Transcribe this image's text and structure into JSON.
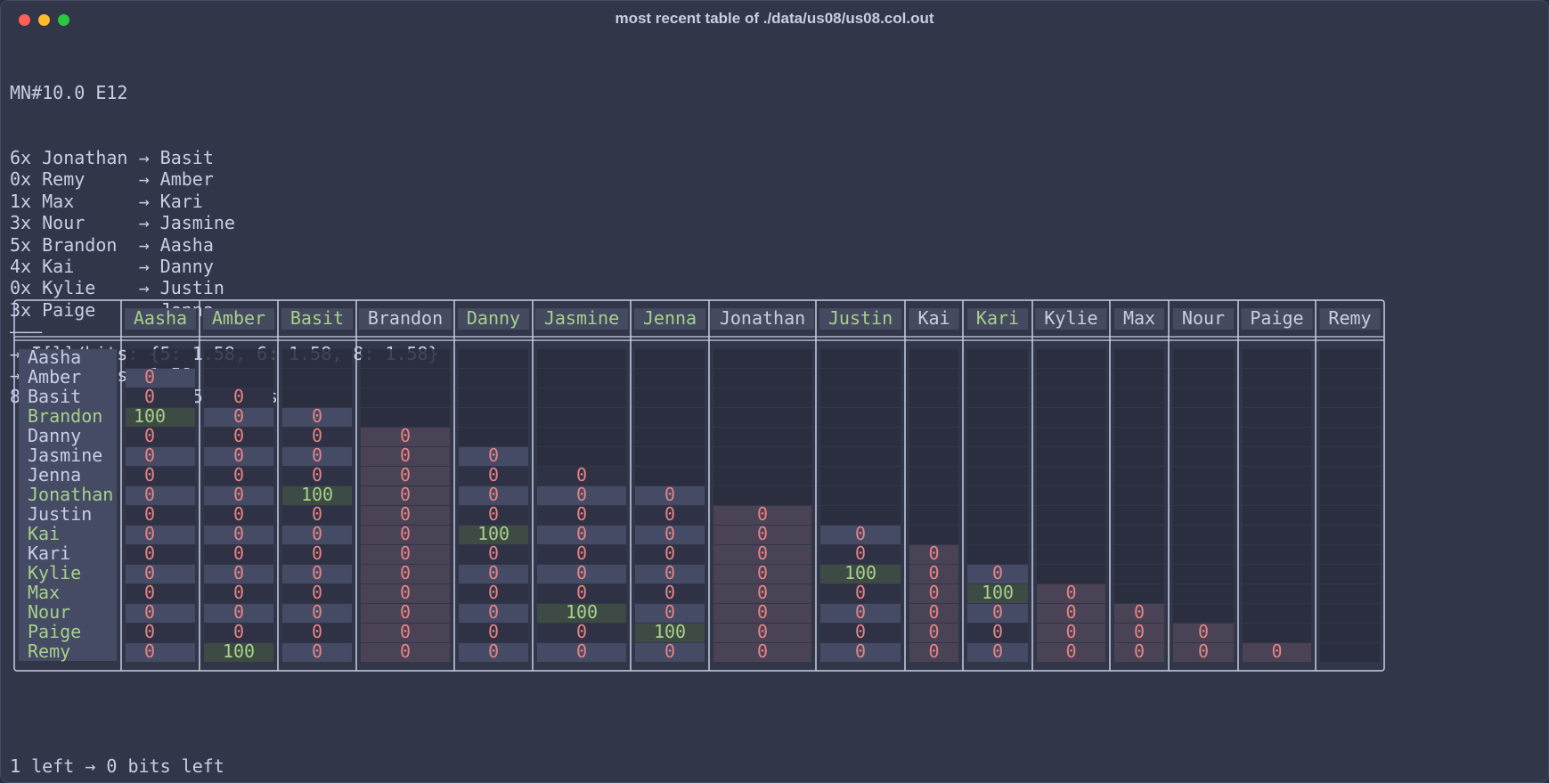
{
  "window": {
    "title": "most recent table of ./data/us08/us08.col.out"
  },
  "header_line": "MN#10.0 E12",
  "pairings": [
    {
      "count": "6x",
      "from": "Jonathan",
      "to": "Basit"
    },
    {
      "count": "0x",
      "from": "Remy",
      "to": "Amber"
    },
    {
      "count": "1x",
      "from": "Max",
      "to": "Kari"
    },
    {
      "count": "3x",
      "from": "Nour",
      "to": "Jasmine"
    },
    {
      "count": "5x",
      "from": "Brandon",
      "to": "Aasha"
    },
    {
      "count": "4x",
      "from": "Kai",
      "to": "Danny"
    },
    {
      "count": "0x",
      "from": "Kylie",
      "to": "Justin"
    },
    {
      "count": "3x",
      "from": "Paige",
      "to": "Jenna"
    }
  ],
  "arrow": "→",
  "separator": "———",
  "stats": [
    "→ I[l]/bits: {5: 1.58, 6: 1.58, 8: 1.58}",
    "→ E[I]/bits: 1.58",
    "8 lights ⇒ I = 1.585 bits"
  ],
  "footer": "1 left → 0 bits left",
  "colors": {
    "text": "#c8cee5",
    "name_green": "#a6d189",
    "zero_red": "#e78284",
    "hundred_green": "#a6d189",
    "cell_blue": "#454b65",
    "cell_green": "#3e4a44",
    "cell_pink": "#4a4355",
    "cell_dark": "#2a2d3d",
    "border": "#c8cee5"
  },
  "table": {
    "columns": [
      "Aasha",
      "Amber",
      "Basit",
      "Brandon",
      "Danny",
      "Jasmine",
      "Jenna",
      "Jonathan",
      "Justin",
      "Kai",
      "Kari",
      "Kylie",
      "Max",
      "Nour",
      "Paige",
      "Remy"
    ],
    "column_green": [
      true,
      true,
      true,
      false,
      true,
      true,
      true,
      false,
      true,
      false,
      true,
      false,
      false,
      false,
      false,
      false
    ],
    "rows": [
      "Aasha",
      "Amber",
      "Basit",
      "Brandon",
      "Danny",
      "Jasmine",
      "Jenna",
      "Jonathan",
      "Justin",
      "Kai",
      "Kari",
      "Kylie",
      "Max",
      "Nour",
      "Paige",
      "Remy"
    ],
    "row_green": [
      false,
      false,
      false,
      true,
      false,
      false,
      false,
      true,
      false,
      true,
      false,
      true,
      true,
      true,
      true,
      true
    ],
    "hundreds": [
      [
        3,
        0
      ],
      [
        7,
        2
      ],
      [
        9,
        4
      ],
      [
        11,
        8
      ],
      [
        12,
        10
      ],
      [
        13,
        5
      ],
      [
        14,
        6
      ],
      [
        15,
        1
      ]
    ],
    "zero_label": "0",
    "hundred_label": "100"
  }
}
